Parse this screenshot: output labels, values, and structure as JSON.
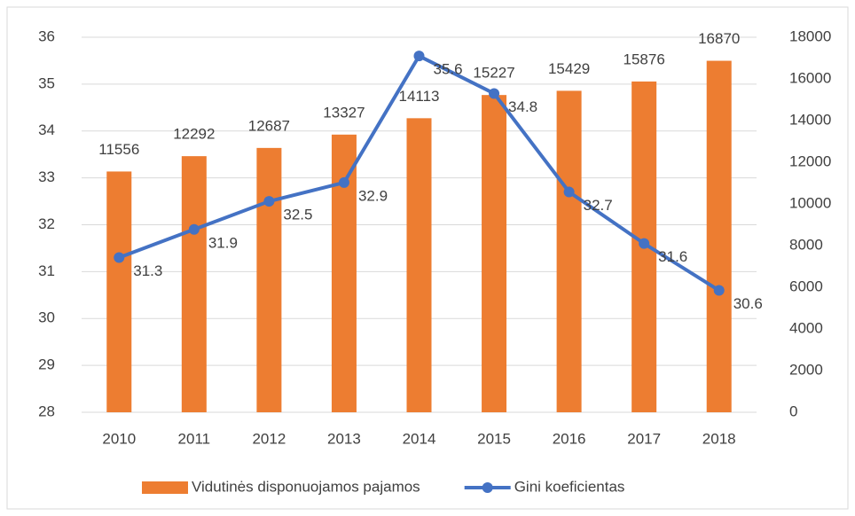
{
  "chart_data": {
    "type": "combo",
    "categories": [
      "2010",
      "2011",
      "2012",
      "2013",
      "2014",
      "2015",
      "2016",
      "2017",
      "2018"
    ],
    "series": [
      {
        "name": "Vidutinės disponuojamos pajamos",
        "type": "bar",
        "axis": "y2",
        "color": "#ed7d31",
        "values": [
          11556,
          12292,
          12687,
          13327,
          14113,
          15227,
          15429,
          15876,
          16870
        ]
      },
      {
        "name": "Gini koeficientas",
        "type": "line",
        "axis": "y",
        "color": "#4472c4",
        "values": [
          31.3,
          31.9,
          32.5,
          32.9,
          35.6,
          34.8,
          32.7,
          31.6,
          30.6
        ]
      }
    ],
    "ylim": [
      28,
      36
    ],
    "yticks": [
      28,
      29,
      30,
      31,
      32,
      33,
      34,
      35,
      36
    ],
    "y2lim": [
      0,
      18000
    ],
    "y2ticks": [
      0,
      2000,
      4000,
      6000,
      8000,
      10000,
      12000,
      14000,
      16000,
      18000
    ],
    "grid": true,
    "legend": "bottom"
  }
}
